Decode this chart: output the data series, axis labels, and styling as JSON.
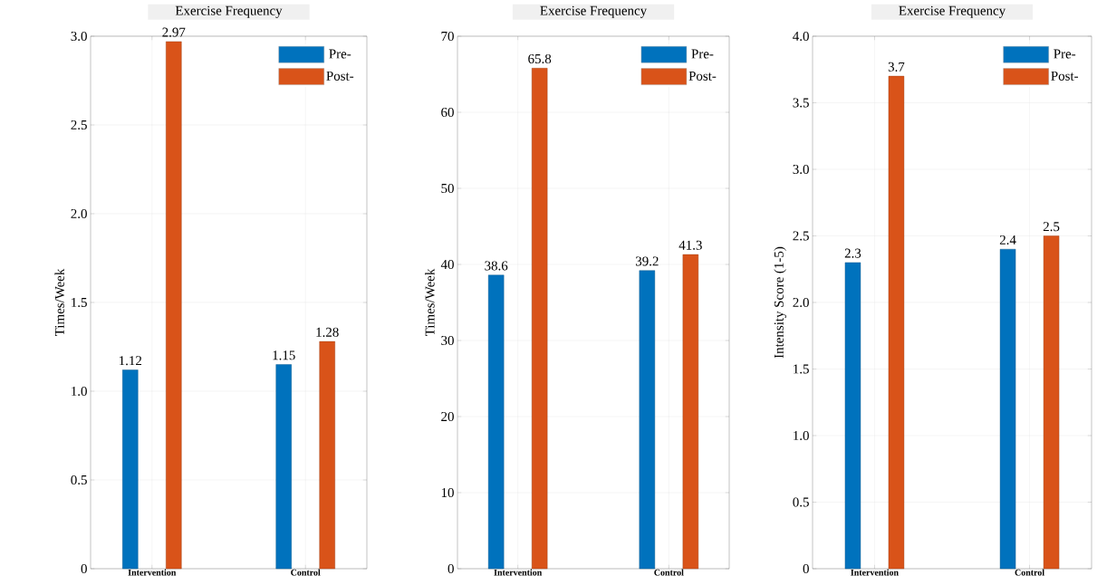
{
  "chart_data": [
    {
      "type": "bar",
      "title": "Exercise Frequency",
      "ylabel": "Times/Week",
      "categories": [
        "Intervention",
        "Control"
      ],
      "series": [
        {
          "name": "Pre-",
          "color": "#0072bd",
          "values": [
            1.12,
            1.15
          ]
        },
        {
          "name": "Post-",
          "color": "#d95319",
          "values": [
            2.97,
            1.28
          ]
        }
      ],
      "ylim": [
        0,
        3
      ],
      "yticks": [
        0,
        0.5,
        {
          "value": 1,
          "label": "1.0"
        },
        1.5,
        {
          "value": 2,
          "label": "2.0"
        },
        2.5,
        {
          "value": 3,
          "label": "3.0"
        }
      ],
      "grid": true,
      "legend": "top right",
      "data_labels": true
    },
    {
      "type": "bar",
      "title": "Exercise Frequency",
      "ylabel": "Times/Week",
      "categories": [
        "Intervention",
        "Control"
      ],
      "series": [
        {
          "name": "Pre-",
          "color": "#0072bd",
          "values": [
            38.6,
            39.2
          ]
        },
        {
          "name": "Post-",
          "color": "#d95319",
          "values": [
            65.8,
            41.3
          ]
        }
      ],
      "ylim": [
        0,
        70
      ],
      "yticks": [
        0,
        10,
        20,
        30,
        40,
        50,
        60,
        70
      ],
      "grid": true,
      "legend": "top right",
      "data_labels": true
    },
    {
      "type": "bar",
      "title": "Exercise Frequency",
      "ylabel": "Intensity Score (1-5)",
      "categories": [
        "Intervention",
        "Control"
      ],
      "series": [
        {
          "name": "Pre-",
          "color": "#0072bd",
          "values": [
            2.3,
            2.4
          ]
        },
        {
          "name": "Post-",
          "color": "#d95319",
          "values": [
            3.7,
            2.5
          ]
        }
      ],
      "ylim": [
        0,
        4
      ],
      "yticks": [
        0,
        0.5,
        {
          "value": 1,
          "label": "1.0"
        },
        1.5,
        {
          "value": 2,
          "label": "2.0"
        },
        2.5,
        {
          "value": 3,
          "label": "3.0"
        },
        3.5,
        {
          "value": 4,
          "label": "4.0"
        }
      ],
      "grid": true,
      "legend": "top right",
      "data_labels": true
    }
  ]
}
